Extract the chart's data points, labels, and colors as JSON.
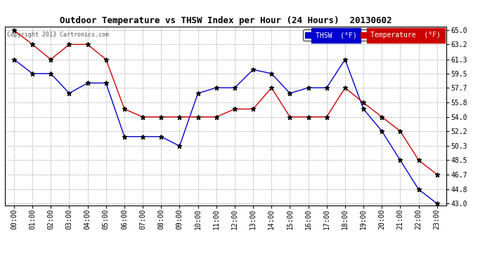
{
  "title": "Outdoor Temperature vs THSW Index per Hour (24 Hours)  20130602",
  "copyright": "Copyright 2013 Cartronics.com",
  "background_color": "#ffffff",
  "plot_background": "#ffffff",
  "grid_color": "#aaaaaa",
  "x_labels": [
    "00:00",
    "01:00",
    "02:00",
    "03:00",
    "04:00",
    "05:00",
    "06:00",
    "07:00",
    "08:00",
    "09:00",
    "10:00",
    "11:00",
    "12:00",
    "13:00",
    "14:00",
    "15:00",
    "16:00",
    "17:00",
    "18:00",
    "19:00",
    "20:00",
    "21:00",
    "22:00",
    "23:00"
  ],
  "thsw": [
    61.3,
    59.5,
    59.5,
    57.0,
    58.3,
    58.3,
    51.5,
    51.5,
    51.5,
    50.3,
    57.0,
    57.7,
    57.7,
    60.0,
    59.5,
    57.0,
    57.7,
    57.7,
    61.3,
    55.0,
    52.2,
    48.5,
    44.8,
    43.0
  ],
  "temperature": [
    65.0,
    63.2,
    61.3,
    63.2,
    63.2,
    61.3,
    55.0,
    54.0,
    54.0,
    54.0,
    54.0,
    54.0,
    55.0,
    55.0,
    57.7,
    54.0,
    54.0,
    54.0,
    57.7,
    55.8,
    54.0,
    52.2,
    48.5,
    46.7
  ],
  "thsw_color": "#0000cc",
  "temp_color": "#cc0000",
  "ylim_min": 43.0,
  "ylim_max": 65.0,
  "yticks": [
    43.0,
    44.8,
    46.7,
    48.5,
    50.3,
    52.2,
    54.0,
    55.8,
    57.7,
    59.5,
    61.3,
    63.2,
    65.0
  ],
  "marker_color": "#000000",
  "marker_size": 5,
  "title_fontsize": 9,
  "tick_fontsize": 7,
  "copyright_fontsize": 6,
  "legend_thsw_label": "THSW  (°F)",
  "legend_temp_label": "Temperature  (°F)"
}
